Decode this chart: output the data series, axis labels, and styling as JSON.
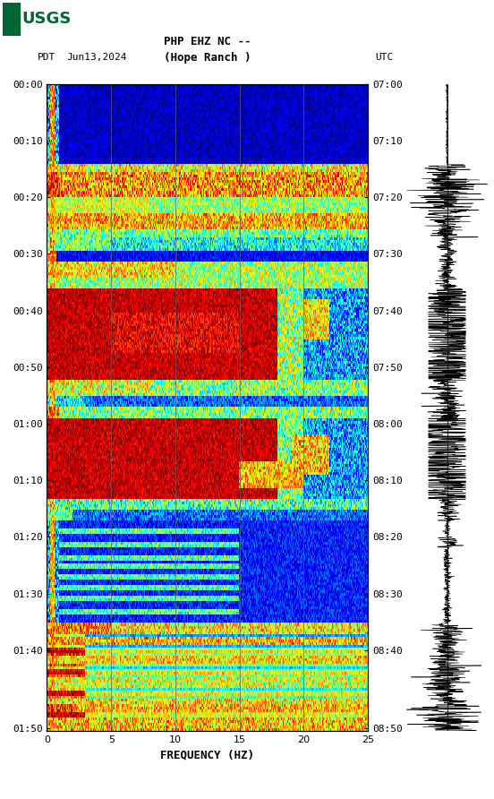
{
  "title_line1": "PHP EHZ NC --",
  "title_line2": "(Hope Ranch )",
  "left_label": "PDT",
  "date_label": "Jun13,2024",
  "right_label": "UTC",
  "left_times": [
    "00:00",
    "00:10",
    "00:20",
    "00:30",
    "00:40",
    "00:50",
    "01:00",
    "01:10",
    "01:20",
    "01:30",
    "01:40",
    "01:50"
  ],
  "right_times": [
    "07:00",
    "07:10",
    "07:20",
    "07:30",
    "07:40",
    "07:50",
    "08:00",
    "08:10",
    "08:20",
    "08:30",
    "08:40",
    "08:50"
  ],
  "freq_label": "FREQUENCY (HZ)",
  "freq_ticks": [
    0,
    5,
    10,
    15,
    20,
    25
  ],
  "freq_range": [
    0,
    25
  ],
  "n_time_rows": 240,
  "n_freq_cols": 500,
  "bg_color": "#ffffff",
  "grid_color": "#606060",
  "grid_alpha": 0.7,
  "tick_fontsize": 8,
  "label_fontsize": 9,
  "title_fontsize": 9,
  "usgs_color": "#006633",
  "fig_width": 5.52,
  "fig_height": 8.92,
  "fig_dpi": 100
}
